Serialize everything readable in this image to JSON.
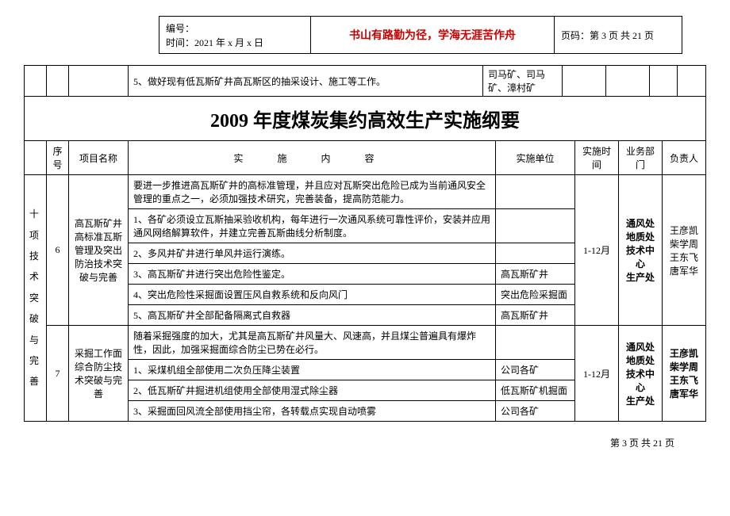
{
  "header": {
    "serial_label": "编号：",
    "time_label": "时间：2021 年 x 月 x 日",
    "motto": "书山有路勤为径，学海无涯苦作舟",
    "page_label": "页码：第 3 页 共 21 页"
  },
  "top_strip": {
    "content": "5、做好现有低瓦斯矿井高瓦斯区的抽采设计、施工等工作。",
    "unit": "司马矿、司马矿、漳村矿"
  },
  "title": "2009 年度煤炭集约高效生产实施纲要",
  "table_headers": {
    "seq": "序号",
    "proj": "项目名称",
    "content": "实   施   内   容",
    "unit": "实施单位",
    "time": "实施时间",
    "dept": "业务部门",
    "person": "负责人"
  },
  "side_label": "十项技术突破与完善",
  "rows": [
    {
      "seq": "6",
      "proj": "高瓦斯矿井高标准瓦斯管理及突出防治技术突破与完善",
      "time": "1-12月",
      "dept": "通风处\n地质处\n技术中心\n生产处",
      "person": "王彦凯\n柴学周\n王东飞\n唐军华",
      "items": [
        {
          "content": "要进一步推进高瓦斯矿井的高标准管理，并且应对瓦斯突出危险已成为当前通风安全管理的重点之一，必须加强技术研究，完善装备，提高防范能力。",
          "unit": ""
        },
        {
          "content": "1、各矿必须设立瓦斯抽采验收机构，每年进行一次通风系统可靠性评价，安装并应用通风网络解算软件，并建立完善瓦斯曲线分析制度。",
          "unit": ""
        },
        {
          "content": "2、多风井矿井进行单风井运行演练。",
          "unit": ""
        },
        {
          "content": "3、高瓦斯矿井进行突出危险性鉴定。",
          "unit": "高瓦斯矿井"
        },
        {
          "content": "4、突出危险性采掘面设置压风自救系统和反向风门",
          "unit": "突出危险采掘面"
        },
        {
          "content": "5、高瓦斯矿井全部配备隔离式自救器",
          "unit": "高瓦斯矿井"
        }
      ]
    },
    {
      "seq": "7",
      "proj": "采掘工作面综合防尘技术突破与完善",
      "time": "1-12月",
      "dept": "通风处\n地质处\n技术中心\n生产处",
      "person": "王彦凯\n柴学周\n王东飞\n唐军华",
      "items": [
        {
          "content": "随着采掘强度的加大，尤其是高瓦斯矿井风量大、风速高，并且煤尘普遍具有爆炸性，因此，加强采掘面综合防尘已势在必行。",
          "unit": ""
        },
        {
          "content": "1、采煤机组全部使用二次负压降尘装置",
          "unit": "公司各矿"
        },
        {
          "content": "2、低瓦斯矿井掘进机组使用全部使用湿式除尘器",
          "unit": "低瓦斯矿机掘面"
        },
        {
          "content": "3、采掘面回风流全部使用挡尘帘，各转载点实现自动喷雾",
          "unit": "公司各矿"
        }
      ]
    }
  ],
  "footer": "第 3 页 共 21 页",
  "colors": {
    "red": "#cc0000",
    "border": "#000000",
    "bg": "#ffffff"
  }
}
